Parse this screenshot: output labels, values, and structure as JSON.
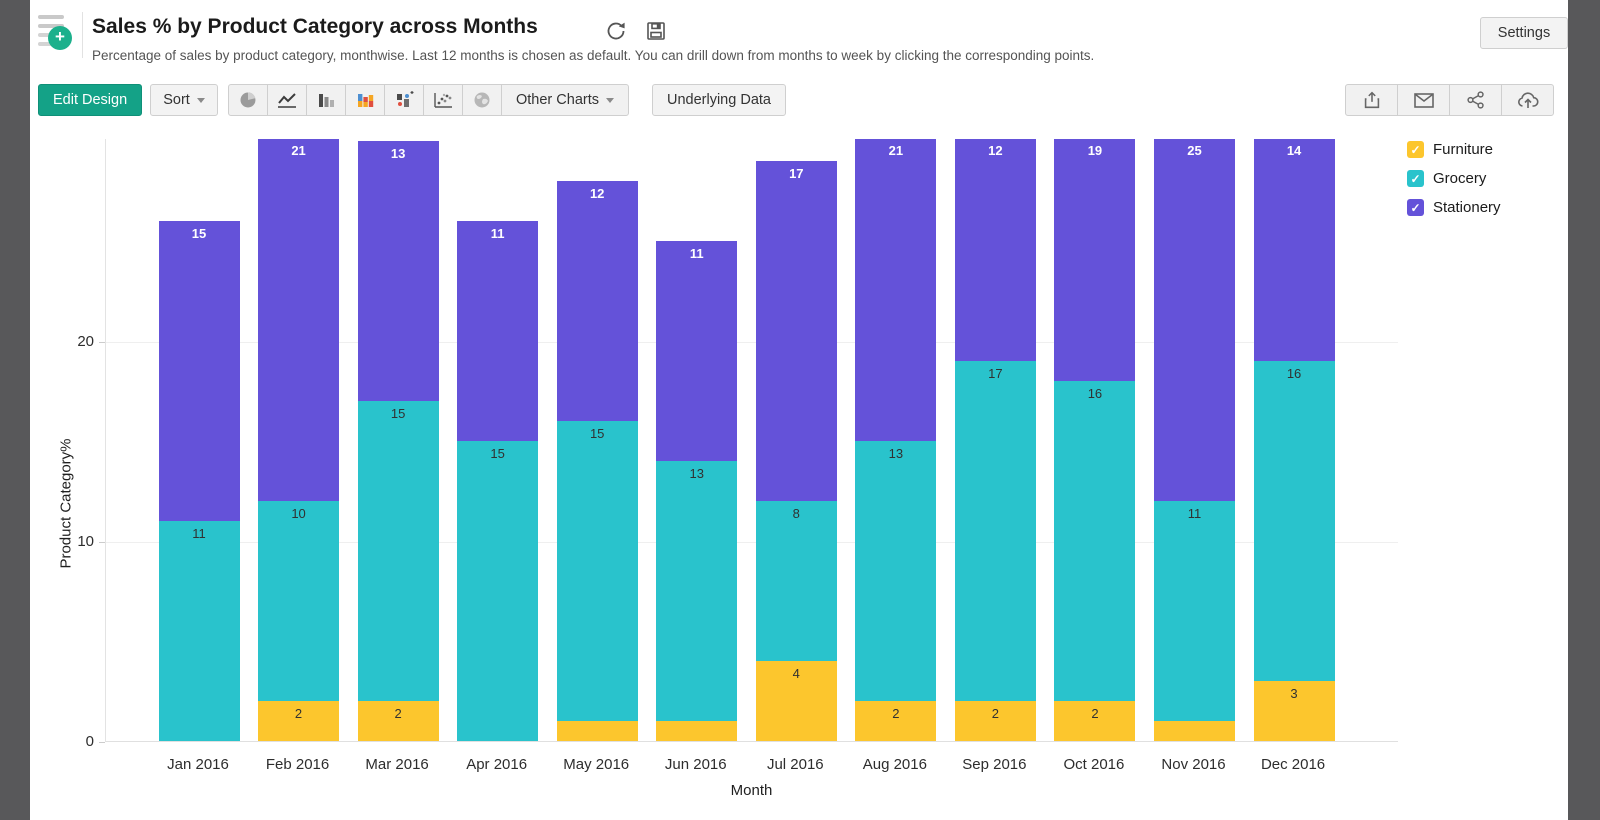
{
  "header": {
    "title": "Sales % by Product Category across Months",
    "subtitle": "Percentage of sales by product category, monthwise. Last 12 months is chosen as default. You can drill down from months to week by clicking the corresponding points."
  },
  "window": {
    "settings_label": "Settings"
  },
  "toolbar": {
    "edit_design_label": "Edit Design",
    "sort_label": "Sort",
    "other_charts_label": "Other Charts",
    "underlying_data_label": "Underlying Data",
    "chart_type_icons": [
      "pie-chart-icon",
      "line-chart-icon",
      "bar-chart-icon",
      "stacked-bar-icon",
      "combo-chart-icon",
      "scatter-chart-icon",
      "map-chart-icon"
    ],
    "share_icons": [
      "export-icon",
      "email-icon",
      "share-icon",
      "publish-icon"
    ]
  },
  "chart_data": {
    "type": "bar",
    "stacked": true,
    "title": "Sales % by Product Category across Months",
    "xlabel": "Month",
    "ylabel": "Product Category%",
    "categories": [
      "Jan 2016",
      "Feb 2016",
      "Mar 2016",
      "Apr 2016",
      "May 2016",
      "Jun 2016",
      "Jul 2016",
      "Aug 2016",
      "Sep 2016",
      "Oct 2016",
      "Nov 2016",
      "Dec 2016"
    ],
    "series": [
      {
        "name": "Furniture",
        "color": "#FCC62D",
        "values": [
          0,
          2,
          2,
          0,
          1,
          1,
          4,
          2,
          2,
          2,
          1,
          3
        ]
      },
      {
        "name": "Grocery",
        "color": "#29C3CC",
        "values": [
          11,
          10,
          15,
          15,
          15,
          13,
          8,
          13,
          17,
          16,
          11,
          16
        ]
      },
      {
        "name": "Stationery",
        "color": "#6452D9",
        "values": [
          15,
          21,
          13,
          11,
          12,
          11,
          17,
          21,
          12,
          19,
          25,
          14
        ]
      }
    ],
    "y_ticks": [
      0,
      10,
      20
    ],
    "ylim_visible": [
      0,
      30.15
    ],
    "grid": true,
    "legend_position": "top-right",
    "label_min_to_show": 2
  }
}
